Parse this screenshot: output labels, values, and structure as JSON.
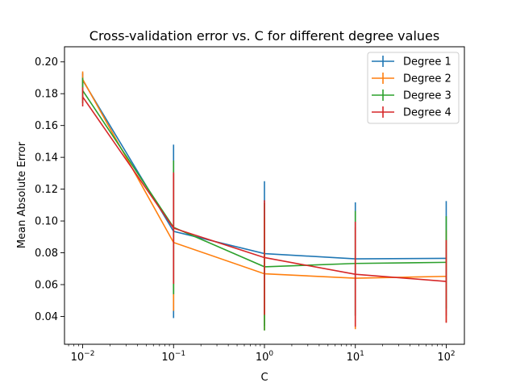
{
  "chart_data": {
    "type": "line",
    "title": "Cross-validation error vs. C for different degree values",
    "xlabel": "C",
    "ylabel": "Mean Absolute Error",
    "xscale": "log",
    "xlim_exp": [
      -2.2,
      2.2
    ],
    "ylim": [
      0.0225,
      0.2095
    ],
    "x": [
      0.01,
      0.1,
      1,
      10,
      100
    ],
    "x_tick_labels": [
      "10^-2",
      "10^-1",
      "10^0",
      "10^1",
      "10^2"
    ],
    "x_tick_exponents": [
      -2,
      -1,
      0,
      1,
      2
    ],
    "y_ticks": [
      0.04,
      0.06,
      0.08,
      0.1,
      0.12,
      0.14,
      0.16,
      0.18,
      0.2
    ],
    "y_tick_labels": [
      "0.04",
      "0.06",
      "0.08",
      "0.10",
      "0.12",
      "0.14",
      "0.16",
      "0.18",
      "0.20"
    ],
    "grid": false,
    "legend_position": "top-right",
    "series": [
      {
        "name": "Degree 1",
        "color": "#1f77b4",
        "values": [
          0.1885,
          0.0935,
          0.0795,
          0.0762,
          0.0765
        ],
        "errors": [
          0.0045,
          0.0545,
          0.0455,
          0.0355,
          0.036
        ]
      },
      {
        "name": "Degree 2",
        "color": "#ff7f0e",
        "values": [
          0.189,
          0.0865,
          0.0668,
          0.064,
          0.0652
        ],
        "errors": [
          0.005,
          0.043,
          0.0355,
          0.032,
          0.029
        ]
      },
      {
        "name": "Degree 3",
        "color": "#2ca02c",
        "values": [
          0.182,
          0.096,
          0.0712,
          0.0733,
          0.074
        ],
        "errors": [
          0.008,
          0.042,
          0.04,
          0.033,
          0.029
        ]
      },
      {
        "name": "Degree 4",
        "color": "#d62728",
        "values": [
          0.178,
          0.0955,
          0.077,
          0.0665,
          0.062
        ],
        "errors": [
          0.006,
          0.035,
          0.036,
          0.033,
          0.026
        ]
      }
    ]
  }
}
